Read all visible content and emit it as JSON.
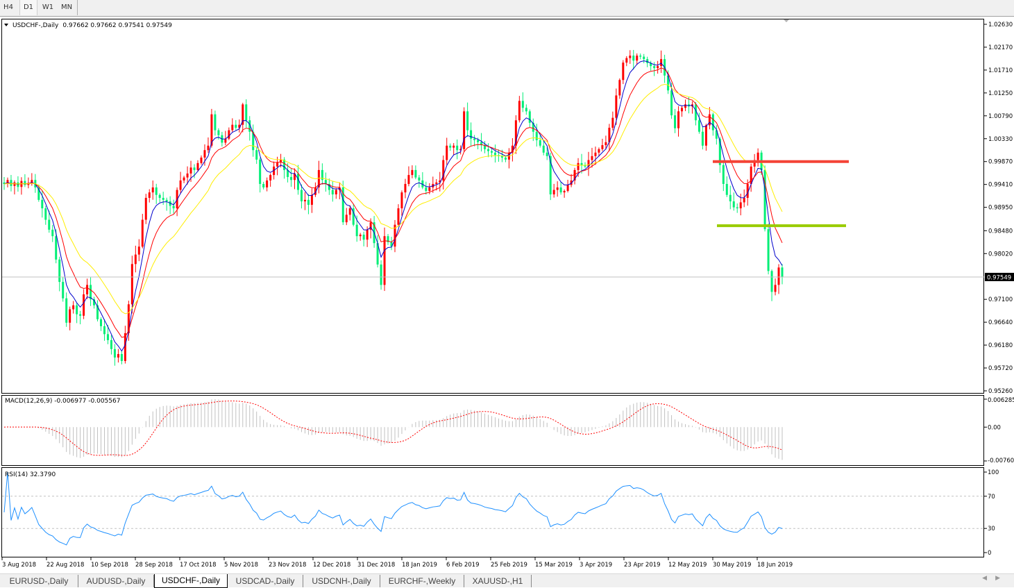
{
  "toolbar": {
    "timeframes": [
      "H4",
      "D1",
      "W1",
      "MN"
    ],
    "active": "D1"
  },
  "chart_header": {
    "symbol": "USDCHF-,Daily",
    "ohlc": "0.97662 0.97662 0.97541 0.97549"
  },
  "macd_header": "MACD(12,26,9) -0.006977 -0.005567",
  "rsi_header": "RSI(14) 32.3790",
  "price_axis": [
    "1.02630",
    "1.02170",
    "1.01710",
    "1.01250",
    "1.00790",
    "1.00330",
    "0.99870",
    "0.99410",
    "0.98950",
    "0.98480",
    "0.98020",
    "0.97100",
    "0.96640",
    "0.96180",
    "0.95720",
    "0.95260"
  ],
  "current_price": "0.97549",
  "macd_axis": [
    "0.006285",
    "0.00",
    "-0.007609"
  ],
  "rsi_axis": [
    "100",
    "70",
    "30",
    "0"
  ],
  "date_axis": [
    "3 Aug 2018",
    "22 Aug 2018",
    "10 Sep 2018",
    "28 Sep 2018",
    "17 Oct 2018",
    "5 Nov 2018",
    "23 Nov 2018",
    "12 Dec 2018",
    "31 Dec 2018",
    "18 Jan 2019",
    "6 Feb 2019",
    "25 Feb 2019",
    "15 Mar 2019",
    "3 Apr 2019",
    "23 Apr 2019",
    "12 May 2019",
    "30 May 2019",
    "18 Jun 2019"
  ],
  "tabs": [
    "EURUSD-,Daily",
    "AUDUSD-,Daily",
    "USDCHF-,Daily",
    "USDCAD-,Daily",
    "USDCNH-,Daily",
    "EURCHF-,Weekly",
    "XAUUSD-,H1"
  ],
  "active_tab": "USDCHF-,Daily",
  "colors": {
    "bull_candle": "#ff0000",
    "bear_candle": "#00ee76",
    "ma_fast": "#0000cc",
    "ma_mid": "#ff0000",
    "ma_slow": "#ffee00",
    "resistance": "#f44336",
    "support": "#99cc00",
    "macd_hist": "#c0c0c0",
    "macd_signal": "#ff0000",
    "rsi": "#1e90ff"
  },
  "chart_data": {
    "type": "candlestick",
    "symbol": "USDCHF",
    "timeframe": "Daily",
    "ylim": [
      0.9526,
      1.0263
    ],
    "last_ohlc": {
      "open": 0.97662,
      "high": 0.97662,
      "low": 0.97541,
      "close": 0.97549
    },
    "horizontal_levels": [
      {
        "price": 0.9987,
        "color": "red"
      },
      {
        "price": 0.9858,
        "color": "green"
      }
    ],
    "moving_averages": [
      "fast",
      "mid",
      "slow"
    ],
    "macd": {
      "params": [
        12,
        26,
        9
      ],
      "main": -0.006977,
      "signal": -0.005567,
      "ylim": [
        -0.007609,
        0.006285
      ]
    },
    "rsi": {
      "period": 14,
      "value": 32.379,
      "levels": [
        30,
        70
      ],
      "ylim": [
        0,
        100
      ]
    },
    "closes": [
      0.9942,
      0.995,
      0.9938,
      0.9945,
      0.9936,
      0.9948,
      0.994,
      0.9944,
      0.995,
      0.9935,
      0.991,
      0.9893,
      0.987,
      0.985,
      0.9837,
      0.979,
      0.9745,
      0.9712,
      0.9663,
      0.969,
      0.9698,
      0.968,
      0.9677,
      0.972,
      0.9739,
      0.971,
      0.9698,
      0.967,
      0.9656,
      0.964,
      0.9628,
      0.961,
      0.9593,
      0.96,
      0.9586,
      0.9642,
      0.97,
      0.9781,
      0.98,
      0.9816,
      0.987,
      0.9914,
      0.9925,
      0.9935,
      0.992,
      0.9914,
      0.991,
      0.9907,
      0.9898,
      0.9893,
      0.993,
      0.9949,
      0.9955,
      0.9963,
      0.9975,
      0.997,
      0.9984,
      0.9995,
      1.001,
      1.0019,
      1.0082,
      1.005,
      1.004,
      1.0025,
      1.0033,
      1.005,
      1.0061,
      1.0055,
      1.0061,
      1.0102,
      1.007,
      1.0047,
      1.001,
      0.9991,
      0.9942,
      0.9935,
      0.9949,
      0.996,
      0.9977,
      0.9985,
      0.9991,
      0.997,
      0.9956,
      0.995,
      0.9963,
      0.993,
      0.9907,
      0.991,
      0.99,
      0.992,
      0.9935,
      0.997,
      0.995,
      0.9942,
      0.993,
      0.9921,
      0.993,
      0.9935,
      0.9865,
      0.988,
      0.9893,
      0.986,
      0.9837,
      0.984,
      0.983,
      0.985,
      0.9865,
      0.9823,
      0.978,
      0.9739,
      0.9837,
      0.9825,
      0.9816,
      0.986,
      0.9893,
      0.9925,
      0.9942,
      0.996,
      0.997,
      0.9955,
      0.9949,
      0.9935,
      0.9928,
      0.9935,
      0.9942,
      0.9945,
      0.9949,
      0.999,
      1.0019,
      1.0015,
      1.0019,
      1.001,
      1.0012,
      1.0088,
      1.005,
      1.0033,
      1.003,
      1.0026,
      1.002,
      1.0012,
      1.0008,
      1.0005,
      1.0,
      0.9998,
      0.9995,
      0.9991,
      1.0005,
      1.0019,
      1.007,
      1.0109,
      1.0095,
      1.0088,
      1.0065,
      1.0047,
      1.003,
      1.0019,
      1.0005,
      0.9998,
      0.9921,
      0.993,
      0.9935,
      0.9925,
      0.9928,
      0.994,
      0.9949,
      0.997,
      0.9984,
      0.998,
      0.9977,
      0.999,
      0.9998,
      1.0005,
      1.0012,
      1.002,
      1.0026,
      1.0055,
      1.0075,
      1.012,
      1.0151,
      1.0186,
      1.0195,
      1.02,
      1.019,
      1.02,
      1.0198,
      1.0193,
      1.0185,
      1.0179,
      1.0175,
      1.0179,
      1.0193,
      1.016,
      1.013,
      1.008,
      1.0054,
      1.0088,
      1.0095,
      1.0102,
      1.0098,
      1.0102,
      1.007,
      1.0047,
      1.0019,
      1.006,
      1.0082,
      1.005,
      1.0033,
      0.998,
      0.9942,
      0.992,
      0.9907,
      0.9895,
      0.9893,
      0.9905,
      0.9914,
      0.9942,
      0.9977,
      0.999,
      1.0005,
      0.997,
      0.9851,
      0.9767,
      0.9725,
      0.9739,
      0.9774,
      0.97549
    ]
  }
}
